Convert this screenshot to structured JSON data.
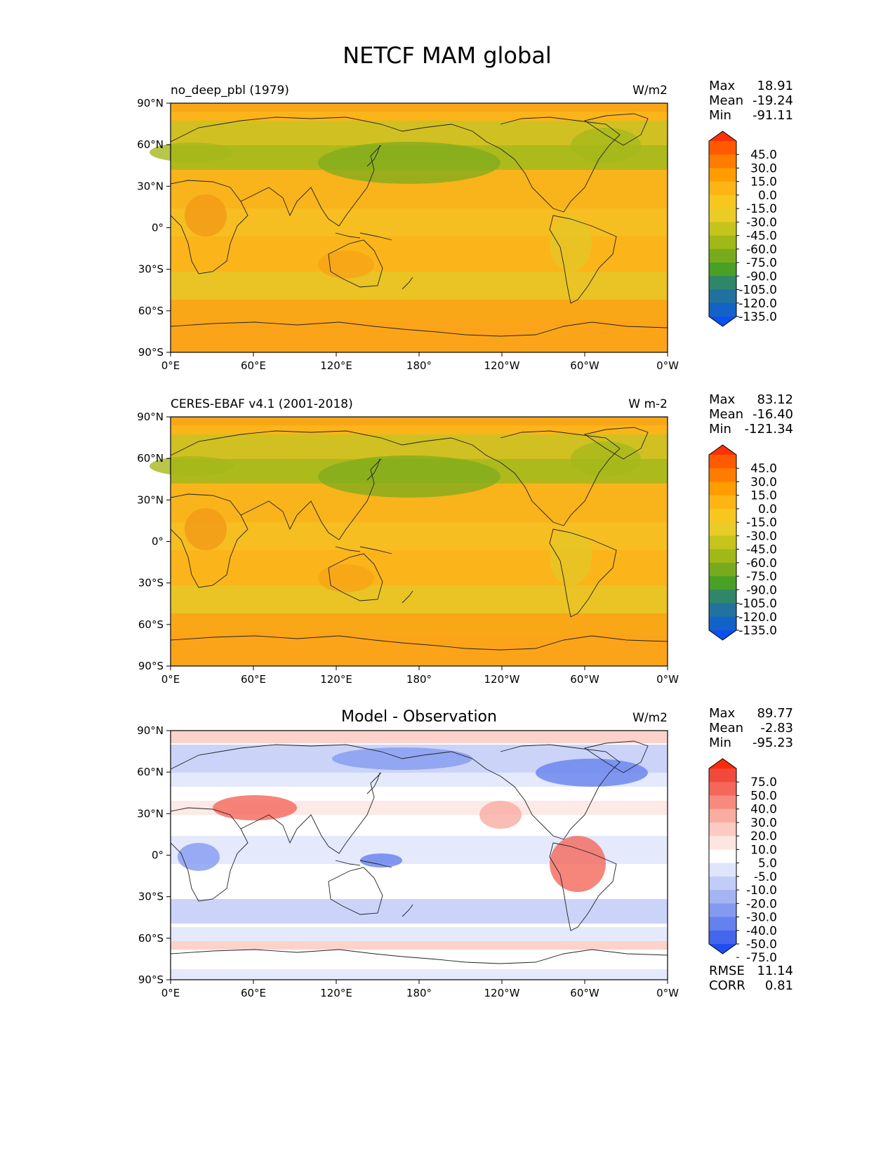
{
  "figure": {
    "title": "NETCF MAM global",
    "x_ticks": [
      "0°E",
      "60°E",
      "120°E",
      "180°",
      "120°W",
      "60°W",
      "0°W"
    ],
    "y_ticks": [
      "90°N",
      "60°N",
      "30°N",
      "0°",
      "30°S",
      "60°S",
      "90°S"
    ]
  },
  "panels": [
    {
      "left_title": "no_deep_pbl (1979)",
      "center_title": "",
      "units": "W/m2",
      "stats": {
        "max_label": "Max",
        "max": "18.91",
        "mean_label": "Mean",
        "mean": "-19.24",
        "min_label": "Min",
        "min": "-91.11"
      },
      "colorbar": {
        "labels": [
          "45.0",
          "30.0",
          "15.0",
          "0.0",
          "-15.0",
          "-30.0",
          "-45.0",
          "-60.0",
          "-75.0",
          "-90.0",
          "-105.0",
          "-120.0",
          "-135.0"
        ],
        "colors": [
          "#ff3008",
          "#ff5a00",
          "#ff7c00",
          "#ff9c00",
          "#fdb516",
          "#f7c720",
          "#e9cc25",
          "#c5c41d",
          "#a0b818",
          "#77ab1c",
          "#4a9f26",
          "#30866a",
          "#2272a0",
          "#1362c8",
          "#0a50f0"
        ]
      }
    },
    {
      "left_title": "CERES-EBAF v4.1 (2001-2018)",
      "center_title": "",
      "units": "W m-2",
      "stats": {
        "max_label": "Max",
        "max": "83.12",
        "mean_label": "Mean",
        "mean": "-16.40",
        "min_label": "Min",
        "min": "-121.34"
      },
      "colorbar": {
        "labels": [
          "45.0",
          "30.0",
          "15.0",
          "0.0",
          "-15.0",
          "-30.0",
          "-45.0",
          "-60.0",
          "-75.0",
          "-90.0",
          "-105.0",
          "-120.0",
          "-135.0"
        ],
        "colors": [
          "#ff3008",
          "#ff5a00",
          "#ff7c00",
          "#ff9c00",
          "#fdb516",
          "#f7c720",
          "#e9cc25",
          "#c5c41d",
          "#a0b818",
          "#77ab1c",
          "#4a9f26",
          "#30866a",
          "#2272a0",
          "#1362c8",
          "#0a50f0"
        ]
      }
    },
    {
      "left_title": "",
      "center_title": "Model - Observation",
      "units": "W/m2",
      "stats": {
        "max_label": "Max",
        "max": "89.77",
        "mean_label": "Mean",
        "mean": "-2.83",
        "min_label": "Min",
        "min": "-95.23"
      },
      "extra": {
        "rmse_label": "RMSE",
        "rmse": "11.14",
        "corr_label": "CORR",
        "corr": "0.81"
      },
      "colorbar": {
        "labels": [
          "75.0",
          "50.0",
          "40.0",
          "30.0",
          "20.0",
          "10.0",
          "5.0",
          "-5.0",
          "-10.0",
          "-20.0",
          "-30.0",
          "-40.0",
          "-50.0",
          "-75.0"
        ],
        "colors": [
          "#ff2a0a",
          "#f2493c",
          "#f4675a",
          "#f78a7e",
          "#f9aca2",
          "#fccac2",
          "#fde5e0",
          "#ffffff",
          "#dfe5fb",
          "#c2cdf7",
          "#a3b4f2",
          "#839af0",
          "#6581ed",
          "#4566ec",
          "#1e4df0"
        ]
      }
    }
  ]
}
